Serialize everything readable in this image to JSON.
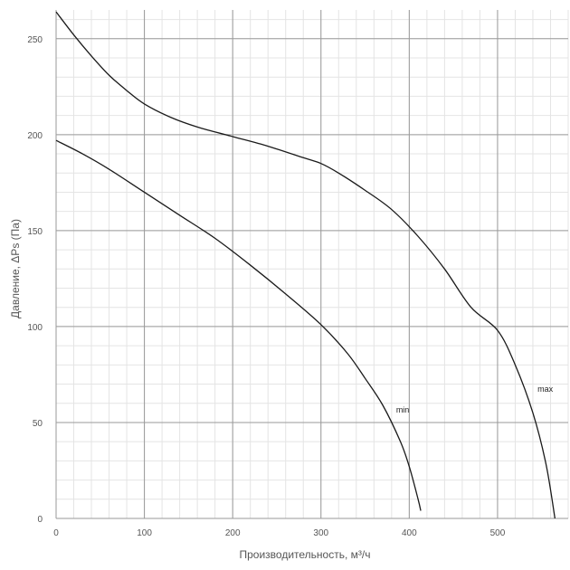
{
  "chart_data": {
    "type": "line",
    "title": "",
    "xlabel": "Производительность, м³/ч",
    "ylabel": "Давление, ΔPs (Па)",
    "xlim": [
      0,
      580
    ],
    "ylim": [
      0,
      265
    ],
    "x_ticks": [
      0,
      100,
      200,
      300,
      400,
      500
    ],
    "y_ticks": [
      0,
      50,
      100,
      150,
      200,
      250
    ],
    "grid": true,
    "legend": "none",
    "colors": {
      "curve": "#1a1a1a",
      "major_grid": "#9a9a9a",
      "minor_grid": "#e4e4e4",
      "text": "#555555"
    },
    "series": [
      {
        "name": "max",
        "x": [
          0,
          20,
          40,
          60,
          80,
          100,
          130,
          160,
          200,
          240,
          280,
          300,
          320,
          350,
          380,
          410,
          440,
          470,
          500,
          520,
          540,
          555,
          565
        ],
        "y": [
          264,
          252,
          241,
          231,
          223,
          216,
          209,
          204,
          199,
          194,
          188,
          185,
          180,
          171,
          161,
          147,
          130,
          110,
          98,
          80,
          55,
          28,
          0
        ]
      },
      {
        "name": "min",
        "x": [
          0,
          30,
          60,
          100,
          140,
          180,
          220,
          260,
          300,
          330,
          350,
          370,
          390,
          400,
          410,
          413
        ],
        "y": [
          197,
          190,
          182,
          170,
          158,
          146,
          132,
          117,
          101,
          86,
          73,
          59,
          40,
          27,
          10,
          4
        ]
      }
    ]
  }
}
